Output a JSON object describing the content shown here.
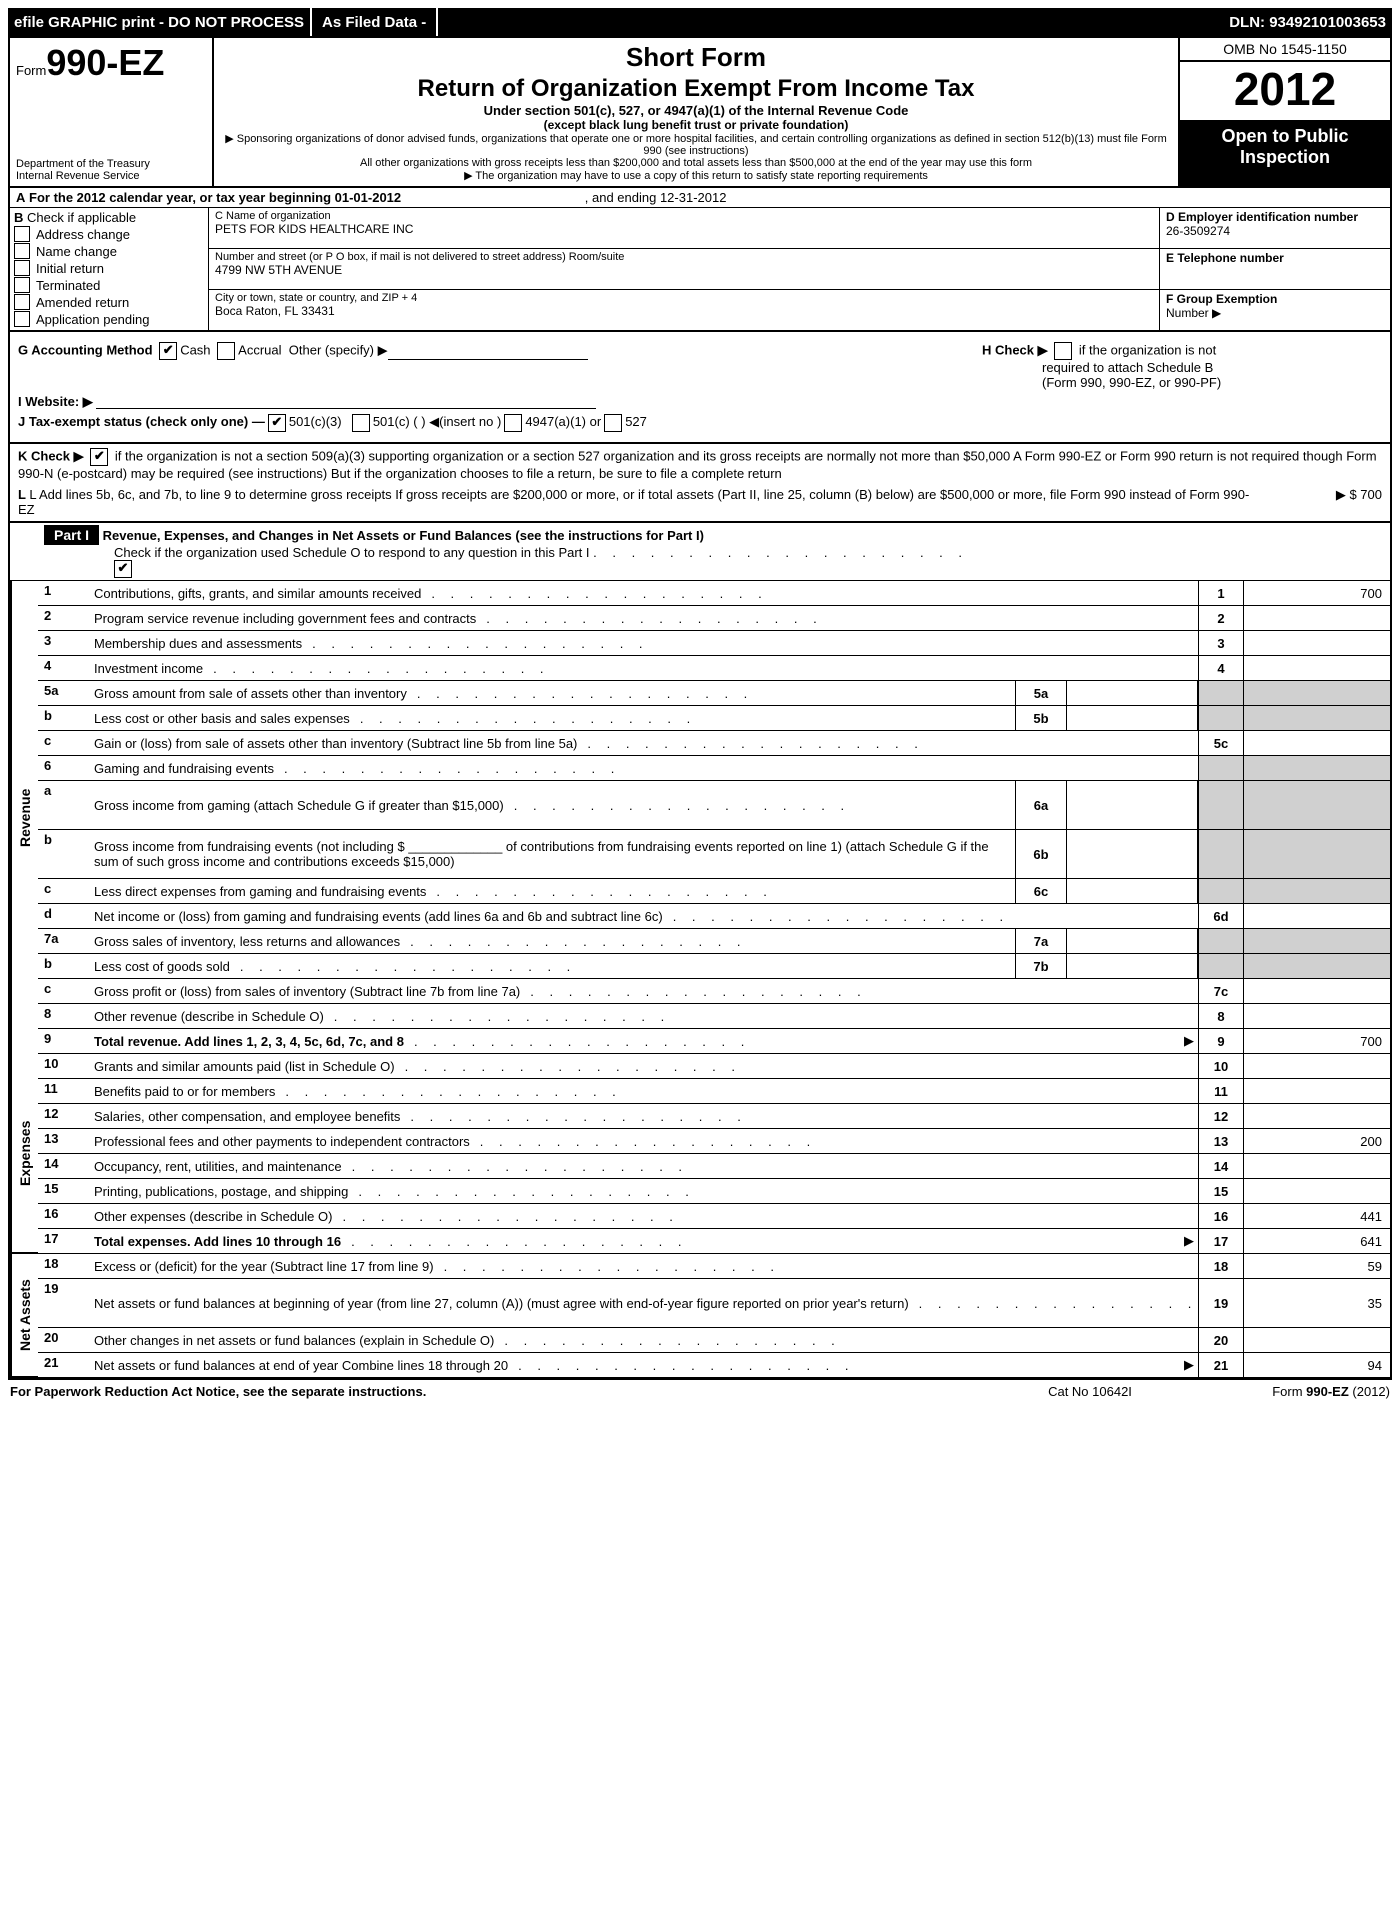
{
  "topbar": {
    "left": "efile GRAPHIC print - DO NOT PROCESS",
    "asfield": "As Filed Data -",
    "dln": "DLN: 93492101003653"
  },
  "header": {
    "form_prefix": "Form",
    "form_code": "990-EZ",
    "dept1": "Department of the Treasury",
    "dept2": "Internal Revenue Service",
    "short": "Short Form",
    "return": "Return of Organization Exempt From Income Tax",
    "sub1": "Under section 501(c), 527, or 4947(a)(1) of the Internal Revenue Code",
    "sub2": "(except black lung benefit trust or private foundation)",
    "small1": "▶ Sponsoring organizations of donor advised funds, organizations that operate one or more hospital facilities, and certain controlling organizations as defined in section 512(b)(13) must file Form 990 (see instructions)",
    "small2": "All other organizations with gross receipts less than $200,000 and total assets less than $500,000 at the end of the year may use this form",
    "small3": "▶ The organization may have to use a copy of this return to satisfy state reporting requirements",
    "omb": "OMB No  1545-1150",
    "year": "2012",
    "open1": "Open to Public",
    "open2": "Inspection"
  },
  "rowA": {
    "label_a": "A",
    "text": "For the 2012 calendar year, or tax year beginning 01-01-2012",
    "ending": ", and ending 12-31-2012"
  },
  "colB": {
    "b": "B",
    "check_if": "Check if applicable",
    "items": [
      "Address change",
      "Name change",
      "Initial return",
      "Terminated",
      "Amended return",
      "Application pending"
    ]
  },
  "colC": {
    "name_lbl": "C Name of organization",
    "name_val": "PETS FOR KIDS HEALTHCARE INC",
    "street_lbl": "Number and street (or P  O  box, if mail is not delivered to street address) Room/suite",
    "street_val": "4799 NW 5TH AVENUE",
    "city_lbl": "City or town, state or country, and ZIP + 4",
    "city_val": "Boca Raton, FL  33431"
  },
  "colDE": {
    "d_lbl": "D Employer identification number",
    "d_val": "26-3509274",
    "e_lbl": "E Telephone number",
    "f_lbl": "F Group Exemption",
    "f_lbl2": "Number    ▶"
  },
  "ghij": {
    "g": "G Accounting Method",
    "g_cash": "Cash",
    "g_accrual": "Accrual",
    "g_other": "Other (specify) ▶",
    "h1": "H  Check ▶",
    "h2": "if the organization is not",
    "h3": "required to attach Schedule B",
    "h4": "(Form 990, 990-EZ, or 990-PF)",
    "i": "I Website: ▶",
    "j": "J Tax-exempt status (check only one) —",
    "j1": "501(c)(3)",
    "j2": "501(c) (    ) ◀(insert no )",
    "j3": "4947(a)(1) or",
    "j4": "527"
  },
  "kl": {
    "k": "K Check ▶",
    "k_text": "if the organization is not a section 509(a)(3) supporting organization or a section 527 organization and its gross receipts are normally not more than $50,000  A Form 990-EZ or Form 990 return is not required though Form 990-N (e-postcard) may be required (see instructions)  But if the organization chooses to file a return, be sure to file a complete return",
    "l": "L Add lines 5b, 6c, and 7b, to line 9 to determine gross receipts  If gross receipts are $200,000 or more, or if total assets (Part II, line 25, column (B) below) are $500,000 or more, file Form 990 instead of Form 990-EZ",
    "l_val": "▶ $ 700"
  },
  "part1": {
    "label": "Part I",
    "title": "Revenue, Expenses, and Changes in Net Assets or Fund Balances (see the instructions for Part I)",
    "check": "Check if the organization used Schedule O to respond to any question in this Part I"
  },
  "vtabs": {
    "revenue": "Revenue",
    "expenses": "Expenses",
    "netassets": "Net Assets"
  },
  "lines": [
    {
      "n": "1",
      "d": "Contributions, gifts, grants, and similar amounts received",
      "r": "1",
      "v": "700"
    },
    {
      "n": "2",
      "d": "Program service revenue including government fees and contracts",
      "r": "2",
      "v": ""
    },
    {
      "n": "3",
      "d": "Membership dues and assessments",
      "r": "3",
      "v": ""
    },
    {
      "n": "4",
      "d": "Investment income",
      "r": "4",
      "v": ""
    },
    {
      "n": "5a",
      "d": "Gross amount from sale of assets other than inventory",
      "sub": "5a",
      "gray": true
    },
    {
      "n": "b",
      "d": "Less  cost or other basis and sales expenses",
      "sub": "5b",
      "gray": true
    },
    {
      "n": "c",
      "d": "Gain or (loss) from sale of assets other than inventory (Subtract line 5b from line 5a)",
      "r": "5c",
      "v": ""
    },
    {
      "n": "6",
      "d": "Gaming and fundraising events",
      "noright": true
    },
    {
      "n": "a",
      "d": "Gross income from gaming (attach Schedule G if greater than $15,000)",
      "sub": "6a",
      "gray": true,
      "tall": true
    },
    {
      "n": "b",
      "d": "Gross income from fundraising events (not including $ _____________ of contributions from fundraising events reported on line 1) (attach Schedule G if the sum of such gross income and contributions exceeds $15,000)",
      "sub": "6b",
      "gray": true,
      "tall": true
    },
    {
      "n": "c",
      "d": "Less  direct expenses from gaming and fundraising events",
      "sub": "6c",
      "gray": true
    },
    {
      "n": "d",
      "d": "Net income or (loss) from gaming and fundraising events (add lines 6a and 6b and subtract line 6c)",
      "r": "6d",
      "v": ""
    },
    {
      "n": "7a",
      "d": "Gross sales of inventory, less returns and allowances",
      "sub": "7a",
      "gray": true
    },
    {
      "n": "b",
      "d": "Less  cost of goods sold",
      "sub": "7b",
      "gray": true
    },
    {
      "n": "c",
      "d": "Gross profit or (loss) from sales of inventory (Subtract line 7b from line 7a)",
      "r": "7c",
      "v": ""
    },
    {
      "n": "8",
      "d": "Other revenue (describe in Schedule O)",
      "r": "8",
      "v": ""
    },
    {
      "n": "9",
      "d": "Total revenue. Add lines 1, 2, 3, 4, 5c, 6d, 7c, and 8",
      "r": "9",
      "v": "700",
      "bold": true,
      "arrow": true
    }
  ],
  "exp_lines": [
    {
      "n": "10",
      "d": "Grants and similar amounts paid (list in Schedule O)",
      "r": "10",
      "v": ""
    },
    {
      "n": "11",
      "d": "Benefits paid to or for members",
      "r": "11",
      "v": ""
    },
    {
      "n": "12",
      "d": "Salaries, other compensation, and employee benefits",
      "r": "12",
      "v": ""
    },
    {
      "n": "13",
      "d": "Professional fees and other payments to independent contractors",
      "r": "13",
      "v": "200"
    },
    {
      "n": "14",
      "d": "Occupancy, rent, utilities, and maintenance",
      "r": "14",
      "v": ""
    },
    {
      "n": "15",
      "d": "Printing, publications, postage, and shipping",
      "r": "15",
      "v": ""
    },
    {
      "n": "16",
      "d": "Other expenses (describe in Schedule O)",
      "r": "16",
      "v": "441"
    },
    {
      "n": "17",
      "d": "Total expenses. Add lines 10 through 16",
      "r": "17",
      "v": "641",
      "bold": true,
      "arrow": true
    }
  ],
  "net_lines": [
    {
      "n": "18",
      "d": "Excess or (deficit) for the year (Subtract line 17 from line 9)",
      "r": "18",
      "v": "59"
    },
    {
      "n": "19",
      "d": "Net assets or fund balances at beginning of year (from line 27, column (A)) (must agree with end-of-year figure reported on prior year's return)",
      "r": "19",
      "v": "35",
      "tall": true
    },
    {
      "n": "20",
      "d": "Other changes in net assets or fund balances (explain in Schedule O)",
      "r": "20",
      "v": ""
    },
    {
      "n": "21",
      "d": "Net assets or fund balances at end of year  Combine lines 18 through 20",
      "r": "21",
      "v": "94",
      "arrow": true
    }
  ],
  "footer": {
    "l": "For Paperwork Reduction Act Notice, see the separate instructions.",
    "c": "Cat  No  10642I",
    "r": "Form 990-EZ (2012)"
  }
}
